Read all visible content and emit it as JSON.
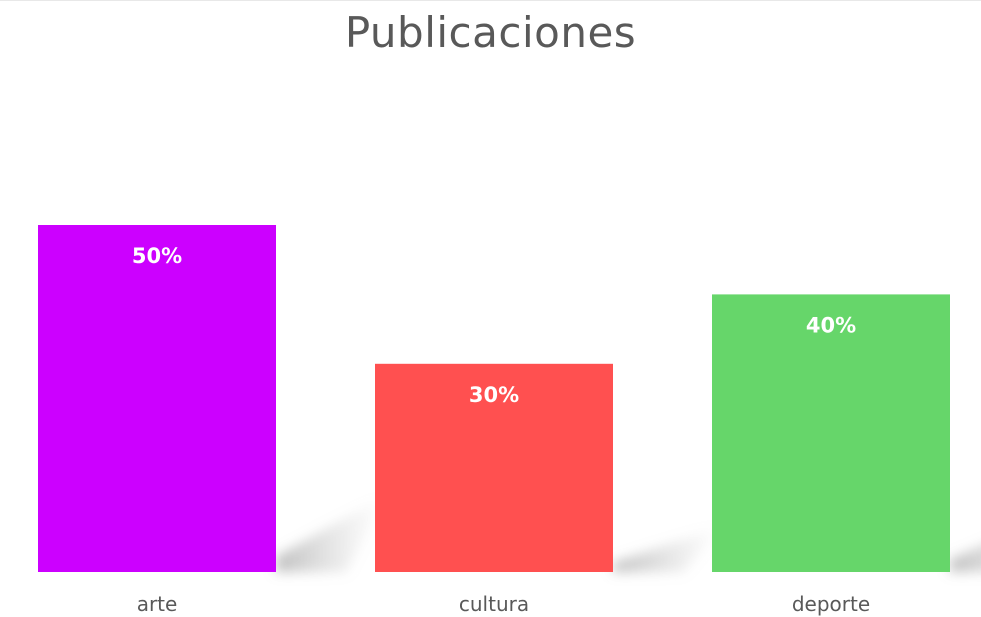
{
  "chart_data": {
    "type": "bar",
    "title": "Publicaciones",
    "categories": [
      "arte",
      "cultura",
      "deporte"
    ],
    "values": [
      50,
      30,
      40
    ],
    "data_labels": [
      "50%",
      "30%",
      "40%"
    ],
    "colors": [
      "#cc00ff",
      "#ff5050",
      "#66d66a"
    ],
    "ylim": [
      0,
      50
    ],
    "grid": false,
    "legend": "none",
    "label_color": "#ffffff",
    "axis_text_color": "#595959"
  }
}
